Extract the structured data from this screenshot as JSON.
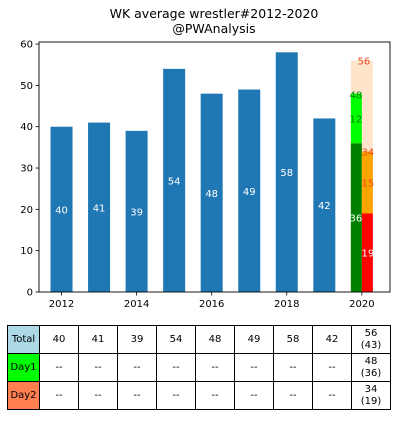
{
  "chart_data": {
    "type": "bar",
    "title_line1": "WK average wrestler#2012-2020",
    "title_line2": "@PWAnalysis",
    "x": [
      2012,
      2013,
      2014,
      2015,
      2016,
      2017,
      2018,
      2019
    ],
    "values": [
      40,
      41,
      39,
      54,
      48,
      49,
      58,
      42
    ],
    "value_labels": [
      "40",
      "41",
      "39",
      "54",
      "48",
      "49",
      "58",
      "42"
    ],
    "bar_color": "#1f77b4",
    "label_color": "#ffffff",
    "x_ticks": [
      "2012",
      "2014",
      "2016",
      "2018",
      "2020"
    ],
    "y_ticks": [
      "0",
      "10",
      "20",
      "30",
      "40",
      "50",
      "60"
    ],
    "xlim": [
      2011.4,
      2020.75
    ],
    "ylim": [
      0,
      60.5
    ],
    "grid": false,
    "year_2020": {
      "x": 2020,
      "total": {
        "value": 56,
        "label": "56",
        "color": "#ffe4cc",
        "label_color": "#e8471a"
      },
      "day1": {
        "value": 48,
        "label": "48",
        "base": 36,
        "base_label": "36",
        "increment": 12,
        "increment_label": "12",
        "color_base": "#008000",
        "color_increment": "#00ff00",
        "label_color": "#008000"
      },
      "day2": {
        "value": 34,
        "label": "34",
        "base": 19,
        "base_label": "19",
        "increment": 15,
        "increment_label": "15",
        "color_base": "#ff0000",
        "color_increment": "#ffa500",
        "label_color": "#e8471a"
      }
    }
  },
  "table": {
    "rows": [
      {
        "label": "Total",
        "color": "#add8e6",
        "cells": [
          "40",
          "41",
          "39",
          "54",
          "48",
          "49",
          "58",
          "42",
          "56\n(43)"
        ]
      },
      {
        "label": "Day1",
        "color": "#00ff00",
        "cells": [
          "--",
          "--",
          "--",
          "--",
          "--",
          "--",
          "--",
          "--",
          "48\n(36)"
        ]
      },
      {
        "label": "Day2",
        "color": "#ff7f50",
        "cells": [
          "--",
          "--",
          "--",
          "--",
          "--",
          "--",
          "--",
          "--",
          "34\n(19)"
        ]
      }
    ]
  }
}
